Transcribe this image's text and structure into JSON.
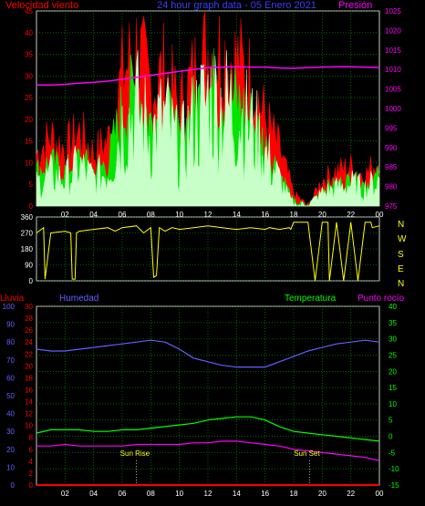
{
  "top": {
    "title": "24 hour graph data - 05 Enero 2021",
    "left_label": "Velocidad viento",
    "right_label": "Presión"
  },
  "middle": {
    "compass": [
      "N",
      "W",
      "S",
      "E",
      "N"
    ]
  },
  "bottom": {
    "rain_label": "Lluvia",
    "humidity_label": "Humedad",
    "temp_label": "Temperatura",
    "dew_label": "Punto rocío",
    "sunrise_label": "Sun Rise",
    "sunset_label": "Sun Set"
  },
  "colors": {
    "grid": "#00A600",
    "frame": "#C8C8C8",
    "wind_gust": "#FF0000",
    "wind_avg": "#00E600",
    "wind_speed": "#C8FFC8",
    "pressure": "#FF00FF",
    "direction": "#FFFF00",
    "rain": "#FF0000",
    "humidity": "#6060FF",
    "temperature": "#00FF00",
    "dew": "#FF00FF"
  },
  "chart_data": [
    {
      "type": "area",
      "title": "24 hour graph data - 05 Enero 2021",
      "xlabel": "",
      "x_ticks": [
        "02",
        "04",
        "06",
        "08",
        "10",
        "12",
        "14",
        "16",
        "18",
        "20",
        "22",
        "00"
      ],
      "x_range_hours": [
        0,
        24
      ],
      "y_left": {
        "label": "Velocidad viento",
        "ticks": [
          0,
          5,
          10,
          15,
          20,
          25,
          30,
          35,
          40,
          45
        ],
        "lim": [
          0,
          45
        ]
      },
      "y_right": {
        "label": "Presión",
        "ticks": [
          975,
          980,
          985,
          990,
          995,
          1000,
          1005,
          1010,
          1015,
          1020,
          1025
        ],
        "lim": [
          975,
          1025
        ]
      },
      "grid": true,
      "hours": [
        0,
        1,
        2,
        3,
        4,
        5,
        6,
        7,
        8,
        9,
        10,
        11,
        12,
        13,
        14,
        15,
        16,
        17,
        18,
        19,
        20,
        21,
        22,
        23,
        24
      ],
      "series": [
        {
          "name": "gust",
          "axis": "left",
          "values": [
            12,
            16,
            13,
            17,
            12,
            15,
            30,
            36,
            27,
            31,
            22,
            30,
            36,
            35,
            33,
            29,
            20,
            13,
            3,
            0,
            6,
            8,
            9,
            7,
            11
          ]
        },
        {
          "name": "average",
          "axis": "left",
          "values": [
            8,
            10,
            8,
            11,
            8,
            10,
            22,
            27,
            19,
            22,
            15,
            22,
            27,
            26,
            24,
            20,
            14,
            8,
            1,
            0,
            4,
            5,
            6,
            5,
            7
          ]
        },
        {
          "name": "speed",
          "axis": "left",
          "values": [
            5,
            7,
            6,
            9,
            6,
            8,
            18,
            22,
            16,
            20,
            12,
            19,
            24,
            23,
            21,
            18,
            12,
            6,
            0,
            0,
            3,
            4,
            5,
            4,
            6
          ]
        },
        {
          "name": "Presión",
          "axis": "right",
          "values": [
            1006,
            1006,
            1006.2,
            1006.5,
            1006.7,
            1007,
            1007.5,
            1008,
            1008.5,
            1009,
            1009.5,
            1010,
            1010.5,
            1010.6,
            1010.7,
            1010.6,
            1010.6,
            1010.4,
            1010.3,
            1010.5,
            1010.6,
            1010.7,
            1010.7,
            1010.6,
            1010.5
          ]
        }
      ]
    },
    {
      "type": "line",
      "title": "",
      "x_range_hours": [
        0,
        24
      ],
      "y": {
        "ticks": [
          0,
          90,
          180,
          270,
          360
        ],
        "lim": [
          0,
          360
        ],
        "compass": [
          "N",
          "W",
          "S",
          "E",
          "N"
        ]
      },
      "grid": true,
      "hours": [
        0,
        0.5,
        0.6,
        1,
        2,
        2.4,
        2.5,
        2.7,
        2.8,
        3,
        4,
        5,
        5.5,
        6,
        7,
        7.5,
        8,
        8.2,
        8.4,
        8.6,
        9,
        9.5,
        10,
        11,
        12,
        13,
        14,
        15,
        16,
        16.3,
        17,
        17.7,
        17.8,
        18,
        19,
        19.5,
        20,
        20.4,
        20.5,
        21,
        21.5,
        22,
        22.5,
        23,
        23.4,
        23.5,
        24
      ],
      "series": [
        {
          "name": "direction",
          "values": [
            270,
            300,
            10,
            270,
            280,
            270,
            10,
            10,
            270,
            280,
            290,
            300,
            280,
            300,
            310,
            270,
            300,
            20,
            30,
            300,
            280,
            300,
            290,
            300,
            310,
            300,
            290,
            300,
            290,
            300,
            290,
            300,
            290,
            330,
            330,
            0,
            330,
            330,
            0,
            330,
            0,
            330,
            0,
            330,
            330,
            300,
            310
          ]
        }
      ]
    },
    {
      "type": "line",
      "title": "",
      "x_ticks": [
        "02",
        "04",
        "06",
        "08",
        "10",
        "12",
        "14",
        "16",
        "18",
        "20",
        "22",
        "00"
      ],
      "x_range_hours": [
        0,
        24
      ],
      "y_axes": [
        {
          "label": "Humedad",
          "ticks": [
            0,
            10,
            20,
            30,
            40,
            50,
            60,
            70,
            80,
            90,
            100
          ],
          "lim": [
            0,
            100
          ]
        },
        {
          "label": "Lluvia",
          "ticks": [
            0,
            2,
            4,
            6,
            8,
            10,
            12,
            14,
            16,
            18,
            20,
            22,
            24,
            26,
            28,
            30
          ],
          "lim": [
            0,
            30
          ]
        },
        {
          "label": "Temperatura / Punto rocío",
          "ticks": [
            -15,
            -10,
            -5,
            0,
            5,
            10,
            15,
            20,
            25,
            30,
            35,
            40
          ],
          "lim": [
            -15,
            40
          ]
        }
      ],
      "annotations": [
        {
          "label": "Sun Rise",
          "x_hour": 7.0
        },
        {
          "label": "Sun Set",
          "x_hour": 19.1
        }
      ],
      "grid": true,
      "hours": [
        0,
        1,
        2,
        3,
        4,
        5,
        6,
        7,
        8,
        9,
        10,
        11,
        12,
        13,
        14,
        15,
        16,
        17,
        18,
        19,
        20,
        21,
        22,
        23,
        24
      ],
      "series": [
        {
          "name": "Lluvia",
          "axis": "Lluvia",
          "values": [
            0,
            0,
            0,
            0,
            0,
            0,
            0,
            0,
            0,
            0,
            0,
            0,
            0,
            0,
            0,
            0,
            0,
            0,
            0,
            0,
            0,
            0,
            0,
            0,
            0
          ]
        },
        {
          "name": "Humedad",
          "axis": "Humedad",
          "values": [
            76,
            75,
            75,
            76,
            77,
            78,
            79,
            80,
            81,
            80,
            76,
            71,
            69,
            67,
            66,
            66,
            66,
            69,
            72,
            75,
            77,
            79,
            80,
            81,
            80
          ]
        },
        {
          "name": "Temperatura",
          "axis": "Temperatura / Punto rocío",
          "values": [
            1,
            2,
            2,
            2,
            1.5,
            1.5,
            2,
            2,
            2.5,
            3,
            3.5,
            4,
            5,
            5.5,
            6,
            6,
            5,
            3,
            1.5,
            1,
            0.5,
            0,
            -0.5,
            -1,
            -1.5
          ]
        },
        {
          "name": "Punto rocío",
          "axis": "Temperatura / Punto rocío",
          "values": [
            -3,
            -3,
            -2.5,
            -3,
            -3,
            -3,
            -3,
            -2.5,
            -2.5,
            -2.5,
            -2.5,
            -2,
            -2,
            -1.5,
            -1.5,
            -2,
            -2.5,
            -3,
            -4,
            -4.5,
            -5,
            -5.5,
            -6,
            -6.5,
            -7.5
          ]
        }
      ]
    }
  ]
}
